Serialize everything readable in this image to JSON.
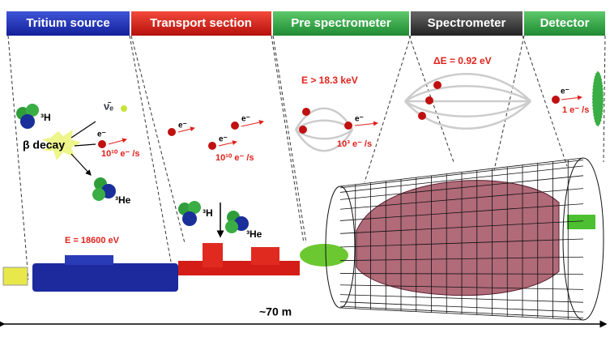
{
  "header": {
    "sections": [
      "Tritium source",
      "Transport section",
      "Pre spectrometer",
      "Spectrometer",
      "Detector"
    ]
  },
  "source": {
    "h3": "³H",
    "decay": "β decay",
    "nu": "ν̄ₑ",
    "electron": "e⁻",
    "rate": "10¹⁰ e⁻ /s",
    "he3": "³He",
    "energy": "E = 18600 eV"
  },
  "transport": {
    "electrons": [
      "e⁻",
      "e⁻",
      "e⁻"
    ],
    "rate": "10¹⁰ e⁻ /s",
    "h3": "³H",
    "he3": "³He"
  },
  "pre_spectrometer": {
    "energy": "E > 18.3 keV",
    "electron": "e⁻",
    "rate": "10³ e⁻ /s"
  },
  "spectrometer": {
    "resolution": "ΔE = 0.92 eV"
  },
  "detector": {
    "electron": "e⁻",
    "rate": "1 e⁻ /s"
  },
  "length": "~70 m"
}
